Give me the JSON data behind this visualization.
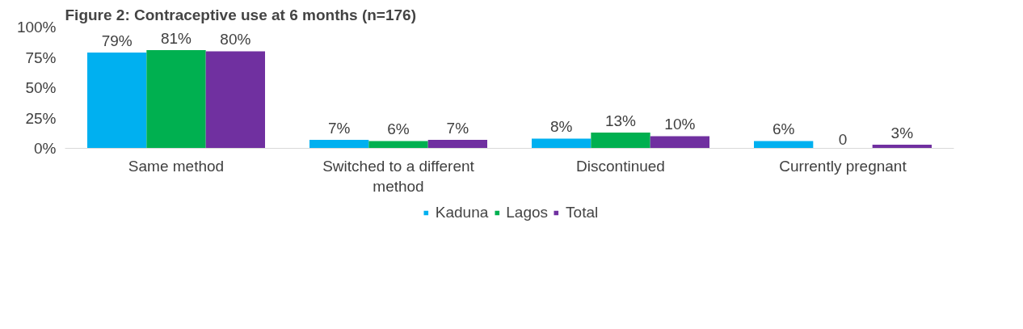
{
  "chart_data": {
    "type": "bar",
    "title": "Figure 2: Contraceptive use at 6 months (n=176)",
    "categories": [
      "Same method",
      "Switched to a different method",
      "Discontinued",
      "Currently pregnant"
    ],
    "series": [
      {
        "name": "Kaduna",
        "color": "#00b0f0",
        "values": [
          79,
          7,
          8,
          6
        ],
        "value_labels": [
          "79%",
          "7%",
          "8%",
          "6%"
        ]
      },
      {
        "name": "Lagos",
        "color": "#00b050",
        "values": [
          81,
          6,
          13,
          0
        ],
        "value_labels": [
          "81%",
          "6%",
          "13%",
          "0"
        ]
      },
      {
        "name": "Total",
        "color": "#7030a0",
        "values": [
          80,
          7,
          10,
          3
        ],
        "value_labels": [
          "80%",
          "7%",
          "10%",
          "3%"
        ]
      }
    ],
    "ylim": [
      0,
      100
    ],
    "yticks": [
      {
        "value": 0,
        "label": "0%"
      },
      {
        "value": 25,
        "label": "25%"
      },
      {
        "value": 50,
        "label": "50%"
      },
      {
        "value": 75,
        "label": "75%"
      },
      {
        "value": 100,
        "label": "100%"
      }
    ],
    "grid": false,
    "legend": "bottom"
  }
}
